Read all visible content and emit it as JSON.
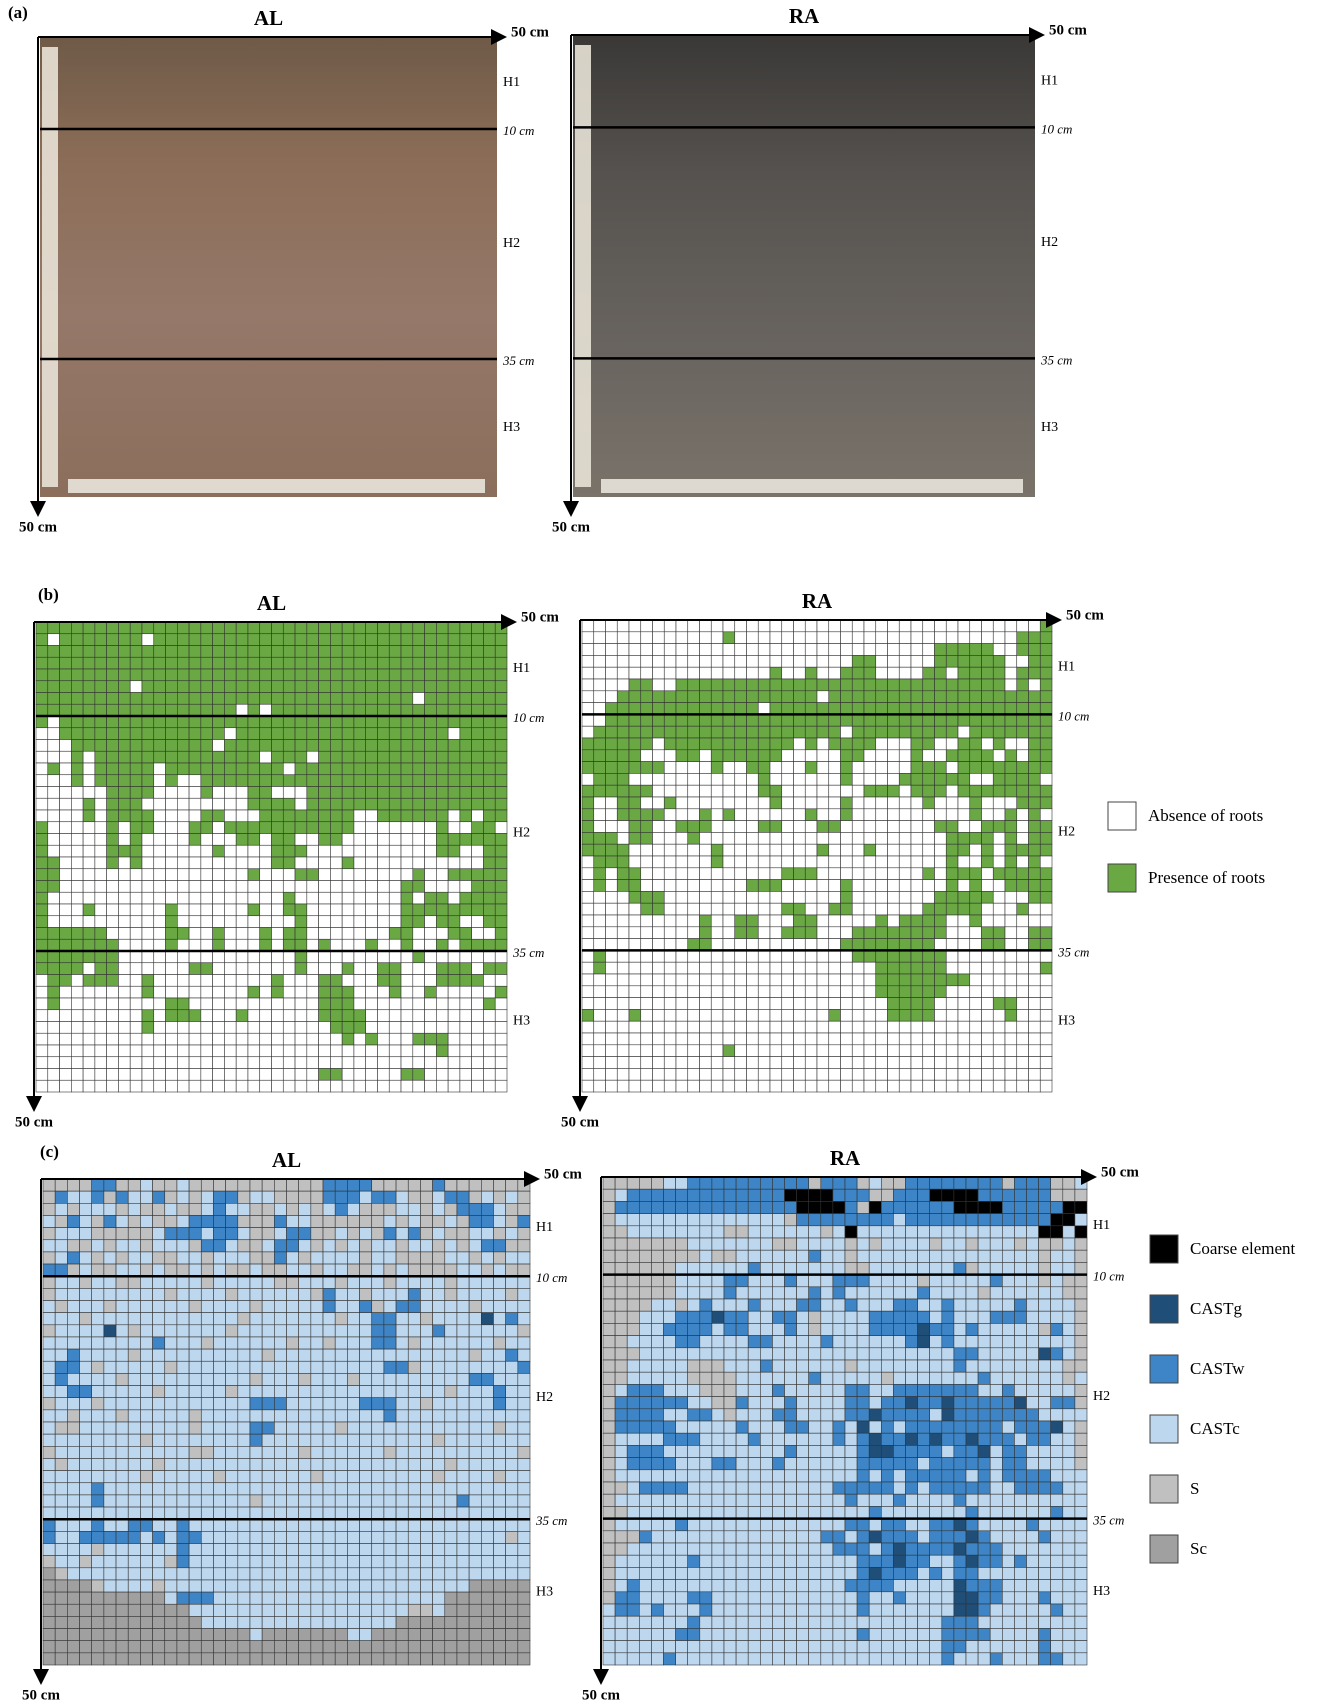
{
  "panel_a": {
    "label": "(a)",
    "profiles": [
      {
        "title": "AL",
        "top_label": "50 cm",
        "bottom_label": "50 cm",
        "horizons": [
          "H1",
          "H2",
          "H3"
        ],
        "boundaries": [
          "10 cm",
          "35 cm"
        ]
      },
      {
        "title": "RA",
        "top_label": "50 cm",
        "bottom_label": "50 cm",
        "horizons": [
          "H1",
          "H2",
          "H3"
        ],
        "boundaries": [
          "10 cm",
          "35 cm"
        ]
      }
    ]
  },
  "panel_b": {
    "label": "(b)",
    "legend": [
      {
        "code": "0",
        "label": "Absence of roots",
        "color": "#ffffff"
      },
      {
        "code": "1",
        "label": "Presence of roots",
        "color": "#6aa843"
      }
    ],
    "profiles": [
      {
        "title": "AL",
        "top_label": "50 cm",
        "bottom_label": "50 cm",
        "horizons": [
          "H1",
          "H2",
          "H3"
        ],
        "boundaries": [
          "10 cm",
          "35 cm"
        ],
        "grid": [
          "1111111111111111111111111111111111111111",
          "1011111110111111111111111111111111111111",
          "1111111111111111111111111111111111111111",
          "1111111111111111111111111111111111111111",
          "1111111111111111111111111111111111111111",
          "1111111101111111111111111111111111111111",
          "1111111111111111111111111111111101111111",
          "1111111111111111101011111111111111111111",
          "1011111111111111111111111111111111111111",
          "0011111111111111011111111111111111101111",
          "0001111111111110111111111111111111111111",
          "0001011111111111111011101111111111111111",
          "0101011111011111111110111111111111111111",
          "0001011111010011111111111111111111111111",
          "0000001111000010001100011111111111111111",
          "0000101110000000001111011111111111111111",
          "0000101111000011000111111110011111101011",
          "1000001011000110111111111110000000100110",
          "1000001010000100011011001100000000111111",
          "1000001110000001000011100000000000110011",
          "1100001010000000000011000010000000000011",
          "1100000000000000001000110000000010011111",
          "1100000000000000000000000000000110000111",
          "1000000000000000000001000000000101101111",
          "1000100000010000001001100000000111111111",
          "1000000000010000000000100000000110110011",
          "1111110000011001000101100000001100011001",
          "1111111000010001000101101000100100101111",
          "1111111000000000000000100000000010000000",
          "1111011000000110000000100010011000111011",
          "0110111001000000000010001100011000111100",
          "0100000001000000001010001110001001000001",
          "0100000000011000000000001110000000000010",
          "0000000001011100010000001111000000000000",
          "0000000001000000000000000111000000000000",
          "0000000000000000000000000010100011100000",
          "0000000000000000000000000000000000100000",
          "0000000000000000000000000000000000000000",
          "0000000000000000000000001100000110000000",
          "0000000000000000000000000000000000000000"
        ]
      },
      {
        "title": "RA",
        "top_label": "50 cm",
        "bottom_label": "50 cm",
        "horizons": [
          "H1",
          "H2",
          "H3"
        ],
        "boundaries": [
          "10 cm",
          "35 cm"
        ],
        "grid": [
          "0000000000000000000000000000000000000001",
          "0000000000001000000000000000000000000111",
          "0000000000000000000000000000001111100111",
          "0000000000000000000000011000001111110011",
          "0000000000000000100100111000011011110111",
          "0000110011111111111111111111111111110101",
          "0001111111111111111101111111111111111111",
          "0011111111111110111111111111111111111111",
          "0011111111111111111111111111111111111111",
          "0111111111111111111111011111111101111111",
          "1111110111111111110101111000110011010011",
          "1111100011011111100000110000100111101011",
          "1111111000010011000100100000111011111111",
          "0111000000000001000000100001111110011110",
          "1111110000000001100000001110111011111111",
          "1001100100000000100000100000010001000111",
          "1001111000101000000100100000000001001010",
          "1000110011100001100011000000001100111011",
          "1110110001000000000000000000000111101011",
          "1111000000010000000010001000000110101111",
          "0111000000010000000000000000000100101010",
          "0101100000000000011100000000010111011111",
          "0101100000000011100000100000000101001111",
          "0000111000000000000000100000001111100011",
          "0000011000000000011001100000011111000100",
          "0000000000100110001100000101111001000000",
          "0000000000100110011100011111111000110011",
          "0000000001100000000000111111110000110011",
          "0100000000000000000000011111111000000000",
          "0100000000000000000000000111111000000001",
          "0000000000000000000000000111111110000000",
          "0000000000000000000000000111111000000000",
          "0000000000000000000000000011110000011000",
          "1000100000000000000001000011110000001000",
          "0000000000000000000000000000000000000000",
          "0000000000000000000000000000000000000000",
          "0000000000001000000000000000000000000000",
          "0000000000000000000000000000000000000000",
          "0000000000000000000000000000000000000000",
          "0000000000000000000000000000000000000000"
        ]
      }
    ]
  },
  "panel_c": {
    "label": "(c)",
    "legend": [
      {
        "code": "K",
        "label": "Coarse element",
        "color": "#000000"
      },
      {
        "code": "G",
        "label": "CASTg",
        "color": "#1f4e79"
      },
      {
        "code": "W",
        "label": "CASTw",
        "color": "#3d85c6"
      },
      {
        "code": "C",
        "label": "CASTc",
        "color": "#bdd7ee"
      },
      {
        "code": "S",
        "label": "S",
        "color": "#c0c0c0"
      },
      {
        "code": "D",
        "label": "Sc",
        "color": "#a0a0a0"
      }
    ],
    "profiles": [
      {
        "title": "AL",
        "top_label": "50 cm",
        "bottom_label": "50 cm",
        "horizons": [
          "H1",
          "H2",
          "H3"
        ],
        "boundaries": [
          "10 cm",
          "35 cm"
        ],
        "grid": [
          "SSSSWWSSCSSCSSSSSSSSSSSWWWWSSSSSWSSSSSSS",
          "SWCCWSWCCWSCSCWWSCCSSSSWWWCWWCSSCWWSCSCS",
          "SCSCCCSCSSCSSCWCCSSCSCSCWCSSSCCSCSWWWCSS",
          "CSWCSWCSCSSCWWWWSSSWCCSSSSSSCSCSSCSWWCSW",
          "SCCCSSSSSCWWWCWWCSSCWWSSCSCSWCWSCSSCCSCS",
          "CCSSCSCCSCCCSWWCSSCWWCSCSCSCCSCCSCSCWWSS",
          "SCWCSCSCCSSCCSCCCSSWCSCCCCSCCSSSSCCSCSCC",
          "WWSCSSCCSCSSCSCSSCSSCCSCCSSCSCSSSSCCSCSS",
          "SCCSCCSSCCCCCSCCCCCSSCCCSCCCSCCCCSCCCCCC",
          "SCCCCCCCCCSCCCCSCCCCCCSWCCSCCCWCCSCCCCSC",
          "CSCCCSCCCCCCSCCCCSCCCCCWCCWSCWWCCCCSCCCC",
          "CCCSCCCCCCCCCCCCSCCCCCCCSCCWWCCSCCCCGCWC",
          "SCCCCGCSCCCCCCCSCCCCCCCCCCCWWCCCWCCCCCCS",
          "CCCCCCCCCWCCCSCCCCCCSCCSCCCWWCSCCCCCCSCC",
          "CCWCCCCSCCCCCCCCCCSCCCCCCCCCCCCCCCCSCCWC",
          "CWWCSCCCCCSCCCCCCCCCCCCCCCCCWWSCCCCCCCCW",
          "CWCCCCSCCCCCCCCCCSCCCSCCCSCCCCCCCCCWWCCC",
          "CCWWCCCCCSCCCCCSCCCCCCCCCCCCCCCCCSCCCWCC",
          "SCCCSCCCCCCCCCCCCWWWCCCCCCWWWCCSCCCCCWCC",
          "CCSCCCSCCCCCSCCCCCCCCCCCCCCCWCCCCCCCCCCC",
          "CSSCCCCCCCCCSCCCCWWCCCCCSCCCCCCCCCCCCSCC",
          "CCCCCCCCSCCCCCCCCWCCCCCCCCCCCCCCSCCCCCCC",
          "SCCCCCCCCCCCSSCCCCCCCSCCCCCCSCCCCCCCCCCS",
          "CSCCCCCCCSCCCCCCCCCCCCCCCCCCCCCCCSCCCCCC",
          "CCCCCCCCSCCCCCSCCCCCCCSCCCCCCCCCSCCCCSCC",
          "CCCCWCCCCCCCCCCCCCCCCCCCCCCCCCCCCCCCCCCC",
          "CCCCWCCCCCCCCCCCCSCCCCCCCCCCCCCCCCWCCCCC",
          "CCCCCCCCCCCCCCCCCCCCCCCCCCCCCCCCCCCCCCCC",
          "WCCCWCCWWCCWCCCCCCCCCCCCCCCCCCCCCCCCCCCC",
          "WCCWWWWWCWCWWCCCCCCCCCCCCCCCCCCCCCCCCCSC",
          "CCCCSCCCCCCWCCCCCCCCCCCCCCCCCCCCCCCCCCCC",
          "SCCSCCCCCCSWCCCCCCCCCCCCCCCCCCCCCCCCCCCC",
          "DSCCCCCCCCCCCCCCCCCCCCCCCCCCCCCCCCCCCCCC",
          "DDDDSCCCCSCCCCCCCCCCCCCCCCCCCCCCCCCDDDDD",
          "DDDDDDDDDDCWWWCCCCCCCCCCCCCCCCCCCDDDDDDD",
          "DDDDDDDDDDDDCCCCCCCCCCCCCCCCCCSSCDDDDDDD",
          "DDDDDDDDDDDDDCCCCCCCCCCCCCCCCDDDDDDDDDDD",
          "DDDDDDDDDDDDDDDDDCDDDDDDDCCDDDDDDDDDDDDD",
          "DDDDDDDDDDDDDDDDDDDDDDDDDDDDDDDDDDDDDDDD",
          "DDDDDDDDDDDDDDDDDDDDDDDDDDDDDDDDDDDDDDDD"
        ]
      },
      {
        "title": "RA",
        "top_label": "50 cm",
        "bottom_label": "50 cm",
        "horizons": [
          "H1",
          "H2",
          "H3"
        ],
        "boundaries": [
          "10 cm",
          "35 cm"
        ],
        "grid": [
          "SSSSSCCWWWWWWWWWWSWWWSCSSWWWWWWWWSWWWSSC",
          "SCWWWWWWWWWWWWWKKKKWWWSSWWWKKKKWWWWWWSSS",
          "SWWWWWWWWWWWWWWWKKKKWSKWWWWWWKKKKWWWWWKK",
          "SCCCCCCCCCCCCCCSWWWWWWWWCWWWWWWWWWWWWKKC",
          "SSCCCCCCCCSSCCCCCCSCKCCCCCCCCCCCCCCCKKCK",
          "SSSSSSSCCCCCCCSSCCCCSCSCCCCSCCSCCCSCSSCS",
          "SSSSSSSSCSSCCCCCCWCCSCCCCCCCCCCCCCCCSCCS",
          "SSSSSSCCCCCCWCCCCCCCSSCCCCCCCWSCCCCCSCCS",
          "SSSSSSCCCCWWCCCWCCCWWWCCCCSCCCCCWCCCSCSS",
          "SSSSSSCCCCWCCCCCCWCWCCCCCCWCCCCSCCCCCCSS",
          "SSSSCCSCWCCCWCCCWWCCWCCCWWCCWCCCCCWCCCCS",
          "SSSCCCWWWGWWCCWWCSCCCCWWWWWCWCCCWWWCCCCS",
          "SSSCCWWWWCWWCCCWCSCCCCWWWWGWWCWCCCCCSWCS",
          "SSCCCCWWCCCCWWCCCCWCCCCCCWGCWCCCCCCCCCCS",
          "SSSCCCCCCCCCCCCCCCCCCCCCCCCCCWWCCCCCGWCS",
          "SSCCCCCSSSCCCWCCCCCCSCCCCCCCCWCCCCCCCCSS",
          "SSCCCCCSSSSCCCCCCWCCCCCSCCCCCCCWCCCCCCSC",
          "SCWWWCCCSSSCCCWCCCCCWWCCWWWWWWWCCWCCCCCS",
          "SWWWWWWCCSSWCCCWCCCCWWCWWGWWGWWWWWGCCWWS",
          "SWWWWCCWWCSCCCWWCCCCWWGWWWWCGWWWWWWWCCCC",
          "SWWWWWCCCCCWCCCWWCCWCGCWCWWWWWWWWCWWWGCS",
          "SCCCCWWWCCCCWCCCCCCWCWGWWGWGWWGWWWCWWCCS",
          "SCWWWCCCCCCCCCCWCCCCCWGGWWWWCWWGCWWCCCCS",
          "SCWWWWCCCWWCCCWCCCCCCWWWWWCWWWWWCWWCCCCS",
          "SCCCCCCCCCCCCCCCCCCCCWCWCWWWWWCWCWWWWCCC",
          "SSCWWWWCCCCCCCCCCCCWWWWWCWCWWWWWCCWWWWCC",
          "SCCCCCCCCCCCCCCCCCCCWCCCWCCCCWCCCCCCCCCC",
          "SSCCCCCCCCCCCCCCCCCCCCWCCCCCCCWCCCCCCWCC",
          "SCCCCCWCCCCCCCCCCCCCWWCWWCCWWGWCCCCWCCCC",
          "SSSWCCCCCCCCCCCCCCWWCWGWWWCWWWGWCCCCWCCC",
          "SSCCCCCCCCCCCCCCCCCWWWCWGWWWWGWWWCCCCCCC",
          "SCCCCCCWCCCCCCCCCCCCCWWWGWWCCWGWWCWCCCCC",
          "SCCCCCCCCCCCCCCCCCCCCWGWWWCWCWWCCCCCCCCC",
          "SCWCCCCCCCCCCCCCCCCCWWWWCCCCCGWWWCCCCCCC",
          "SWWCCCCWWCCCCCCCCCCCCWCCWCCCCGGWWCCCWCCC",
          "CWWCWCCCWCCCCCCCCCCCCWCCCCCCCGGWCCCCCWCC",
          "CCCCCCCWCCCCCCCCCCCCCCCCCCCCWWWCCCCCCCCC",
          "CCCCCCWWCCCCCCCCCCCCCWCCCCCCWWWWCCCCWCCC",
          "CCCCCCCCCCCCCCCCCCCCCCCCCCCCWWCCCCCCWCCC",
          "CCCCCWCCCCCCCCCCCCCCCCCCCCCCWCCCWCCCWWCC"
        ]
      }
    ]
  }
}
